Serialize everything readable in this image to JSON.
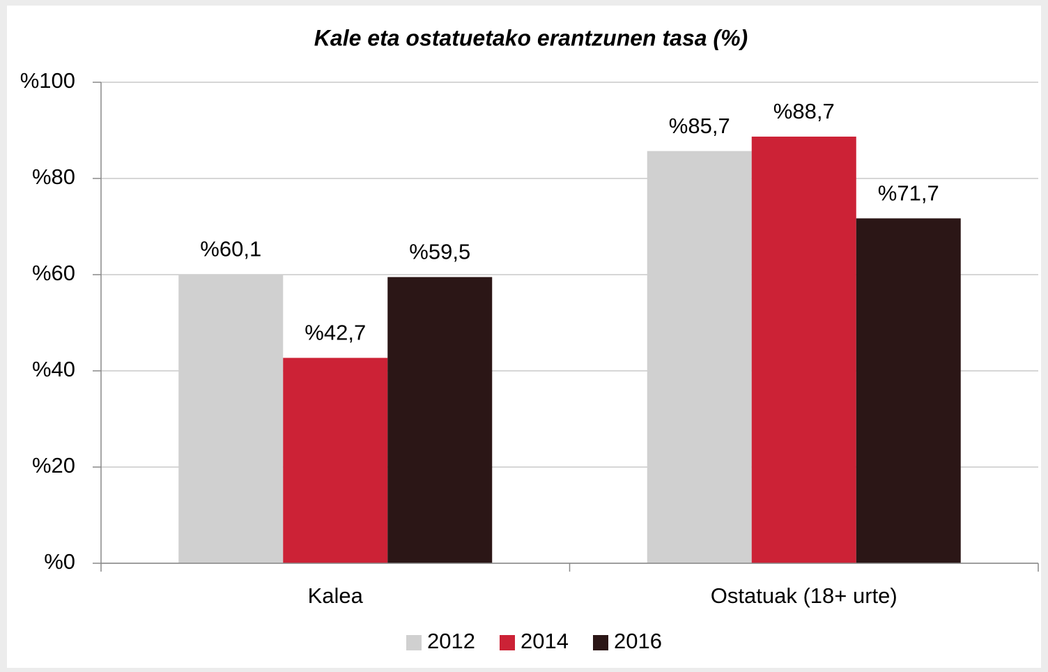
{
  "chart_data": {
    "type": "bar",
    "title": "Kale eta ostatuetako erantzunen tasa (%)",
    "categories": [
      "Kalea",
      "Ostatuak (18+ urte)"
    ],
    "series": [
      {
        "name": "2012",
        "color": "#d0d0d0",
        "values": [
          60.1,
          85.7
        ],
        "value_labels": [
          "%60,1",
          "%85,7"
        ]
      },
      {
        "name": "2014",
        "color": "#cc2236",
        "values": [
          42.7,
          88.7
        ],
        "value_labels": [
          "%42,7",
          "%88,7"
        ]
      },
      {
        "name": "2016",
        "color": "#2b1616",
        "values": [
          59.5,
          71.7
        ],
        "value_labels": [
          "%59,5",
          "%71,7"
        ]
      }
    ],
    "ylim": [
      0,
      100
    ],
    "yticks": [
      {
        "value": 0,
        "label": "%0"
      },
      {
        "value": 20,
        "label": "%20"
      },
      {
        "value": 40,
        "label": "%40"
      },
      {
        "value": 60,
        "label": "%60"
      },
      {
        "value": 80,
        "label": "%80"
      },
      {
        "value": 100,
        "label": "%100"
      }
    ],
    "grid": true,
    "legend": "bottom"
  }
}
